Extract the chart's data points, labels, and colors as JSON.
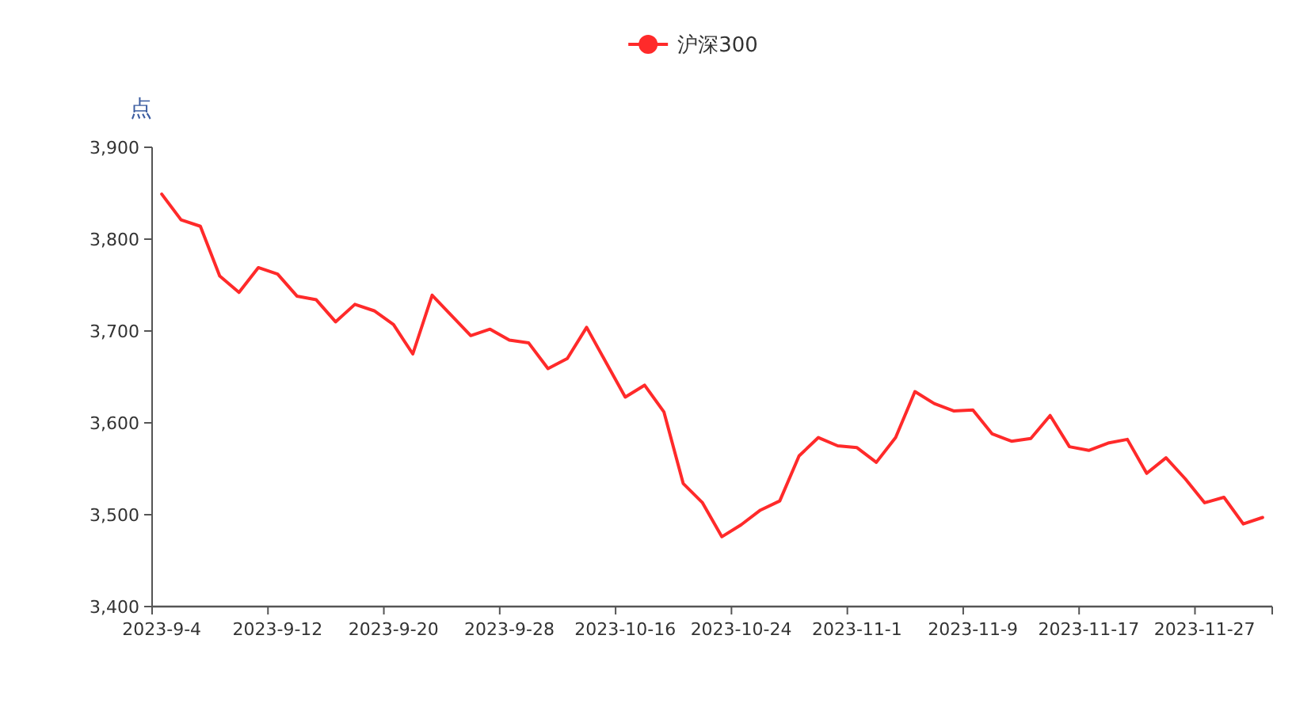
{
  "chart_data": {
    "type": "line",
    "ylabel": "点",
    "categories": [
      "2023-9-4",
      null,
      null,
      null,
      null,
      null,
      "2023-9-12",
      null,
      null,
      null,
      null,
      null,
      "2023-9-20",
      null,
      null,
      null,
      null,
      null,
      "2023-9-28",
      null,
      null,
      null,
      null,
      null,
      "2023-10-16",
      null,
      null,
      null,
      null,
      null,
      "2023-10-24",
      null,
      null,
      null,
      null,
      null,
      "2023-11-1",
      null,
      null,
      null,
      null,
      null,
      "2023-11-9",
      null,
      null,
      null,
      null,
      null,
      "2023-11-17",
      null,
      null,
      null,
      null,
      null,
      "2023-11-27",
      null,
      null,
      null
    ],
    "series": [
      {
        "name": "沪深300",
        "color": "#ff2a2a",
        "values": [
          3849,
          3821,
          3814,
          3760,
          3742,
          3769,
          3762,
          3738,
          3734,
          3710,
          3729,
          3722,
          3707,
          3675,
          3739,
          3717,
          3695,
          3702,
          3690,
          3687,
          3659,
          3670,
          3704,
          3666,
          3628,
          3641,
          3612,
          3534,
          3513,
          3476,
          3489,
          3505,
          3515,
          3564,
          3584,
          3575,
          3573,
          3557,
          3584,
          3634,
          3621,
          3613,
          3614,
          3588,
          3580,
          3583,
          3608,
          3574,
          3570,
          3578,
          3582,
          3545,
          3562,
          3539,
          3513,
          3519,
          3490,
          3497
        ]
      }
    ],
    "ylim": [
      3400,
      3900
    ],
    "yticks": [
      {
        "value": 3400,
        "label": "3,400"
      },
      {
        "value": 3500,
        "label": "3,500"
      },
      {
        "value": 3600,
        "label": "3,600"
      },
      {
        "value": 3700,
        "label": "3,700"
      },
      {
        "value": 3800,
        "label": "3,800"
      },
      {
        "value": 3900,
        "label": "3,900"
      }
    ],
    "legend": "top"
  }
}
